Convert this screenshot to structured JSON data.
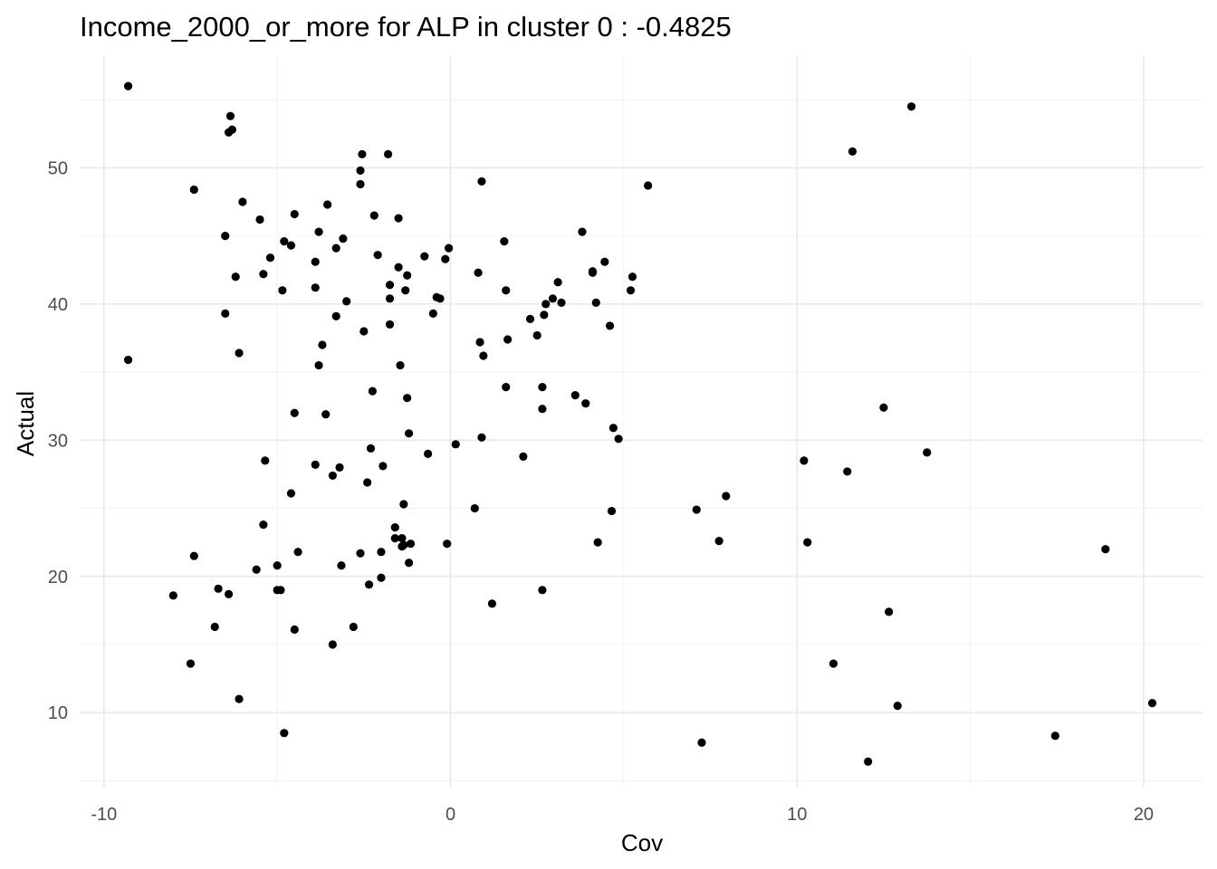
{
  "chart_data": {
    "type": "scatter",
    "title": "Income_2000_or_more for ALP in cluster 0 : -0.4825",
    "xlabel": "Cov",
    "ylabel": "Actual",
    "xlim": [
      -10.7,
      21.7
    ],
    "ylim": [
      4.5,
      58.2
    ],
    "x_ticks": [
      -10,
      0,
      10,
      20
    ],
    "x_tick_labels": [
      "-10",
      "0",
      "10",
      "20"
    ],
    "y_ticks": [
      10,
      20,
      30,
      40,
      50
    ],
    "y_tick_labels": [
      "10",
      "20",
      "30",
      "40",
      "50"
    ],
    "grid": true,
    "legend": "none",
    "point_color": "#000000",
    "points": [
      [
        -9.3,
        56.0
      ],
      [
        -9.3,
        35.9
      ],
      [
        -8.0,
        18.6
      ],
      [
        -7.5,
        13.6
      ],
      [
        -7.4,
        21.5
      ],
      [
        -7.4,
        48.4
      ],
      [
        -6.8,
        16.3
      ],
      [
        -6.7,
        19.1
      ],
      [
        -6.5,
        45.0
      ],
      [
        -6.5,
        39.3
      ],
      [
        -6.4,
        18.7
      ],
      [
        -6.4,
        52.6
      ],
      [
        -6.35,
        53.8
      ],
      [
        -6.3,
        52.8
      ],
      [
        -6.2,
        42.0
      ],
      [
        -6.1,
        11.0
      ],
      [
        -6.1,
        36.4
      ],
      [
        -6.0,
        47.5
      ],
      [
        -5.6,
        20.5
      ],
      [
        -5.5,
        46.2
      ],
      [
        -5.4,
        23.8
      ],
      [
        -5.4,
        42.2
      ],
      [
        -5.35,
        28.5
      ],
      [
        -5.2,
        43.4
      ],
      [
        -5.0,
        20.8
      ],
      [
        -5.0,
        19.0
      ],
      [
        -4.9,
        19.0
      ],
      [
        -4.85,
        41.0
      ],
      [
        -4.8,
        44.6
      ],
      [
        -4.8,
        8.5
      ],
      [
        -4.6,
        26.1
      ],
      [
        -4.6,
        44.3
      ],
      [
        -4.5,
        46.6
      ],
      [
        -4.5,
        16.1
      ],
      [
        -4.5,
        32.0
      ],
      [
        -4.4,
        21.8
      ],
      [
        -3.9,
        41.2
      ],
      [
        -3.9,
        43.1
      ],
      [
        -3.9,
        28.2
      ],
      [
        -3.8,
        35.5
      ],
      [
        -3.8,
        45.3
      ],
      [
        -3.7,
        37.0
      ],
      [
        -3.6,
        31.9
      ],
      [
        -3.55,
        47.3
      ],
      [
        -3.4,
        15.0
      ],
      [
        -3.4,
        27.4
      ],
      [
        -3.3,
        39.1
      ],
      [
        -3.3,
        44.1
      ],
      [
        -3.2,
        28.0
      ],
      [
        -3.15,
        20.8
      ],
      [
        -3.1,
        44.8
      ],
      [
        -3.0,
        40.2
      ],
      [
        -2.8,
        16.3
      ],
      [
        -2.6,
        21.7
      ],
      [
        -2.6,
        48.8
      ],
      [
        -2.6,
        49.8
      ],
      [
        -2.55,
        51.0
      ],
      [
        -2.5,
        38.0
      ],
      [
        -2.4,
        26.9
      ],
      [
        -2.35,
        19.4
      ],
      [
        -2.3,
        29.4
      ],
      [
        -2.25,
        33.6
      ],
      [
        -2.2,
        46.5
      ],
      [
        -2.1,
        43.6
      ],
      [
        -2.0,
        21.8
      ],
      [
        -2.0,
        19.9
      ],
      [
        -1.95,
        28.1
      ],
      [
        -1.8,
        51.0
      ],
      [
        -1.75,
        38.5
      ],
      [
        -1.75,
        40.4
      ],
      [
        -1.75,
        41.4
      ],
      [
        -1.6,
        23.6
      ],
      [
        -1.6,
        22.8
      ],
      [
        -1.5,
        46.3
      ],
      [
        -1.5,
        42.7
      ],
      [
        -1.45,
        35.5
      ],
      [
        -1.4,
        22.8
      ],
      [
        -1.4,
        22.2
      ],
      [
        -1.35,
        22.3
      ],
      [
        -1.35,
        25.3
      ],
      [
        -1.3,
        41.0
      ],
      [
        -1.25,
        42.1
      ],
      [
        -1.25,
        33.1
      ],
      [
        -1.2,
        30.5
      ],
      [
        -1.2,
        21.0
      ],
      [
        -1.15,
        22.4
      ],
      [
        -0.75,
        43.5
      ],
      [
        -0.65,
        29.0
      ],
      [
        -0.5,
        39.3
      ],
      [
        -0.4,
        40.5
      ],
      [
        -0.3,
        40.4
      ],
      [
        -0.15,
        43.3
      ],
      [
        -0.1,
        22.4
      ],
      [
        -0.05,
        44.1
      ],
      [
        0.15,
        29.7
      ],
      [
        0.7,
        25.0
      ],
      [
        0.8,
        42.3
      ],
      [
        0.85,
        37.2
      ],
      [
        0.9,
        49.0
      ],
      [
        0.9,
        30.2
      ],
      [
        0.95,
        36.2
      ],
      [
        1.2,
        18.0
      ],
      [
        1.55,
        44.6
      ],
      [
        1.6,
        33.9
      ],
      [
        1.6,
        41.0
      ],
      [
        1.65,
        37.4
      ],
      [
        2.1,
        28.8
      ],
      [
        2.3,
        38.9
      ],
      [
        2.5,
        37.7
      ],
      [
        2.65,
        32.3
      ],
      [
        2.65,
        33.9
      ],
      [
        2.65,
        19.0
      ],
      [
        2.7,
        39.2
      ],
      [
        2.75,
        40.0
      ],
      [
        2.95,
        40.4
      ],
      [
        3.1,
        41.6
      ],
      [
        3.2,
        40.1
      ],
      [
        3.6,
        33.3
      ],
      [
        3.8,
        45.3
      ],
      [
        3.9,
        32.7
      ],
      [
        4.1,
        42.3
      ],
      [
        4.1,
        42.4
      ],
      [
        4.2,
        40.1
      ],
      [
        4.25,
        22.5
      ],
      [
        4.45,
        43.1
      ],
      [
        4.6,
        38.4
      ],
      [
        4.65,
        24.8
      ],
      [
        4.7,
        30.9
      ],
      [
        4.85,
        30.1
      ],
      [
        5.2,
        41.0
      ],
      [
        5.25,
        42.0
      ],
      [
        5.7,
        48.7
      ],
      [
        7.1,
        24.9
      ],
      [
        7.25,
        7.8
      ],
      [
        7.75,
        22.6
      ],
      [
        7.95,
        25.9
      ],
      [
        10.2,
        28.5
      ],
      [
        10.3,
        22.5
      ],
      [
        11.05,
        13.6
      ],
      [
        11.45,
        27.7
      ],
      [
        11.6,
        51.2
      ],
      [
        12.05,
        6.4
      ],
      [
        12.5,
        32.4
      ],
      [
        12.65,
        17.4
      ],
      [
        12.9,
        10.5
      ],
      [
        13.3,
        54.5
      ],
      [
        13.75,
        29.1
      ],
      [
        17.45,
        8.3
      ],
      [
        18.9,
        22.0
      ],
      [
        20.25,
        10.7
      ]
    ]
  }
}
